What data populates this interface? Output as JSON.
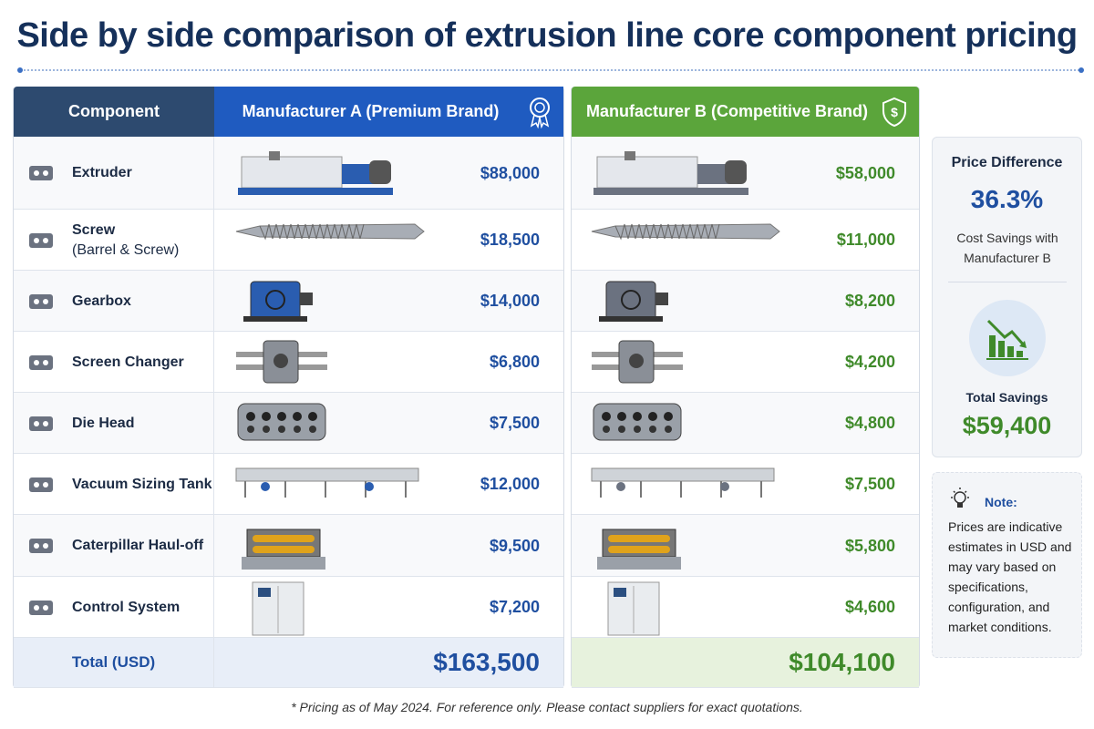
{
  "header": {
    "title": "Side by side comparison of extrusion line core component pricing"
  },
  "table": {
    "columns": [
      "Component",
      "Manufacturer A (Premium Brand)",
      "Manufacturer B (Competitive Brand)"
    ],
    "rows": [
      {
        "component": "Extruder",
        "price_a": "$88,000",
        "price_b": "$58,000"
      },
      {
        "component": "Screw",
        "detail": "(Barrel & Screw)",
        "price_a": "$18,500",
        "price_b": "$11,000"
      },
      {
        "component": "Gearbox",
        "price_a": "$14,000",
        "price_b": "$8,200"
      },
      {
        "component": "Screen Changer",
        "price_a": "$6,800",
        "price_b": "$4,200"
      },
      {
        "component": "Die Head",
        "price_a": "$7,500",
        "price_b": "$4,800"
      },
      {
        "component": "Vacuum Sizing Tank",
        "price_a": "$12,000",
        "price_b": "$7,500"
      },
      {
        "component": "Caterpillar Haul-off",
        "price_a": "$9,500",
        "price_b": "$5,800"
      },
      {
        "component": "Control System",
        "price_a": "$7,200",
        "price_b": "$4,600"
      }
    ],
    "total": {
      "label": "Total (USD)",
      "price_a": "$163,500",
      "price_b": "$104,100"
    }
  },
  "summary": {
    "title": "Price Difference",
    "percent": "36.3%",
    "percent_caption": "Cost Savings with Manufacturer B",
    "savings_label": "Total Savings",
    "savings": "$59,400"
  },
  "note": {
    "title": "Note:",
    "text": "Prices are indicative estimates in USD and may vary based on specifications, configuration, and market conditions."
  },
  "footnote": "* Pricing as of May 2024. For reference only. Please contact suppliers for exact quotations."
}
